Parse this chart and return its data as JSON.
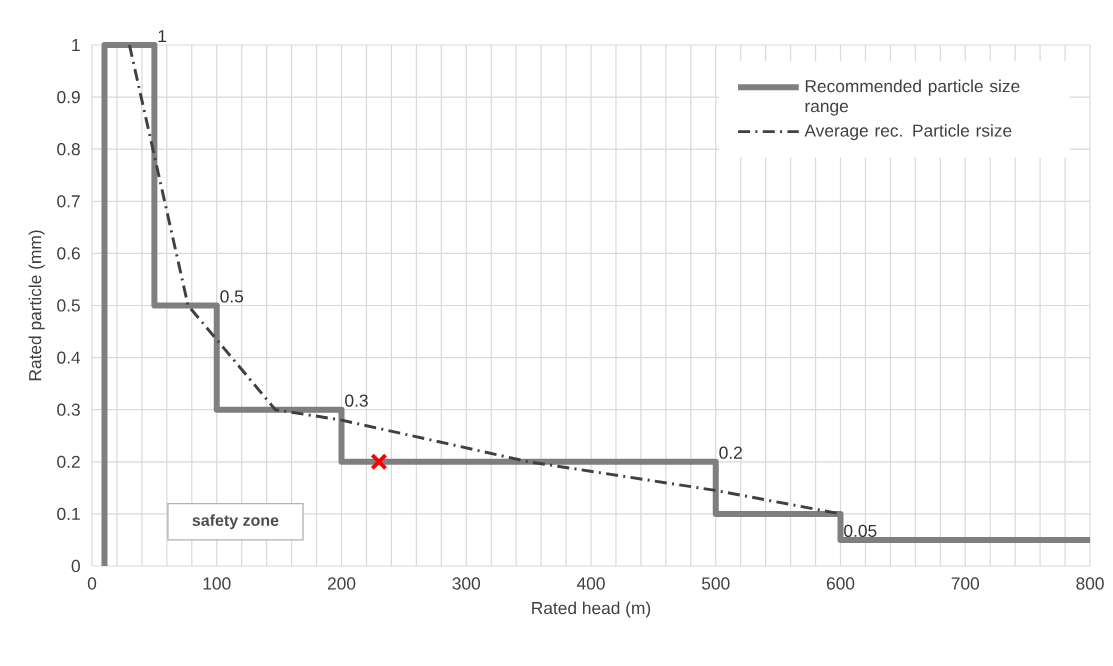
{
  "chart_data": {
    "type": "line",
    "xlabel": "Rated head (m)",
    "ylabel": "Rated particle (mm)",
    "xlim": [
      0,
      800
    ],
    "ylim": [
      0,
      1
    ],
    "xticks": [
      0,
      {
        "value": 20,
        "label": null
      },
      {
        "value": 40,
        "label": null
      },
      {
        "value": 60,
        "label": null
      },
      {
        "value": 80,
        "label": null
      },
      100,
      {
        "value": 120,
        "label": null
      },
      {
        "value": 140,
        "label": null
      },
      {
        "value": 160,
        "label": null
      },
      {
        "value": 180,
        "label": null
      },
      200,
      {
        "value": 220,
        "label": null
      },
      {
        "value": 240,
        "label": null
      },
      {
        "value": 260,
        "label": null
      },
      {
        "value": 280,
        "label": null
      },
      300,
      {
        "value": 320,
        "label": null
      },
      {
        "value": 340,
        "label": null
      },
      {
        "value": 360,
        "label": null
      },
      {
        "value": 380,
        "label": null
      },
      400,
      {
        "value": 420,
        "label": null
      },
      {
        "value": 440,
        "label": null
      },
      {
        "value": 460,
        "label": null
      },
      {
        "value": 480,
        "label": null
      },
      500,
      {
        "value": 520,
        "label": null
      },
      {
        "value": 540,
        "label": null
      },
      {
        "value": 560,
        "label": null
      },
      {
        "value": 580,
        "label": null
      },
      600,
      {
        "value": 620,
        "label": null
      },
      {
        "value": 640,
        "label": null
      },
      {
        "value": 660,
        "label": null
      },
      {
        "value": 680,
        "label": null
      },
      700,
      {
        "value": 720,
        "label": null
      },
      {
        "value": 740,
        "label": null
      },
      {
        "value": 760,
        "label": null
      },
      {
        "value": 780,
        "label": null
      },
      800
    ],
    "yticks": [
      0,
      0.1,
      0.2,
      0.3,
      0.4,
      0.5,
      0.6,
      0.7,
      0.8,
      0.9,
      1
    ],
    "grid": true,
    "legend": "top right",
    "series": [
      {
        "name": "Recommended particle size range",
        "color": "#7f7f7f",
        "line_style": "solid",
        "x": [
          10,
          10,
          50,
          50,
          100,
          100,
          200,
          200,
          500,
          500,
          600,
          600,
          800
        ],
        "values": [
          0,
          1,
          1,
          0.5,
          0.5,
          0.3,
          0.3,
          0.2,
          0.2,
          0.1,
          0.1,
          0.05,
          0.05
        ]
      },
      {
        "name": "Average rec. Particle rsize",
        "color": "#404040",
        "line_style": "dashdot",
        "x": [
          30,
          77,
          147,
          200,
          350,
          500,
          600
        ],
        "values": [
          1,
          0.5,
          0.3,
          0.28,
          0.2,
          0.145,
          0.1
        ]
      },
      {
        "type": "scatter",
        "color": "#ff0000",
        "marker": "cross",
        "x": [
          230
        ],
        "values": [
          0.2
        ]
      }
    ],
    "annotations": [
      {
        "text": "1",
        "x": 50,
        "y": 1
      },
      {
        "text": "0.5",
        "x": 100,
        "y": 0.5
      },
      {
        "text": "0.3",
        "x": 200,
        "y": 0.3
      },
      {
        "text": "0.2",
        "x": 500,
        "y": 0.2
      },
      {
        "text": "0.05",
        "x": 600,
        "y": 0.05
      },
      "safety zone"
    ]
  }
}
